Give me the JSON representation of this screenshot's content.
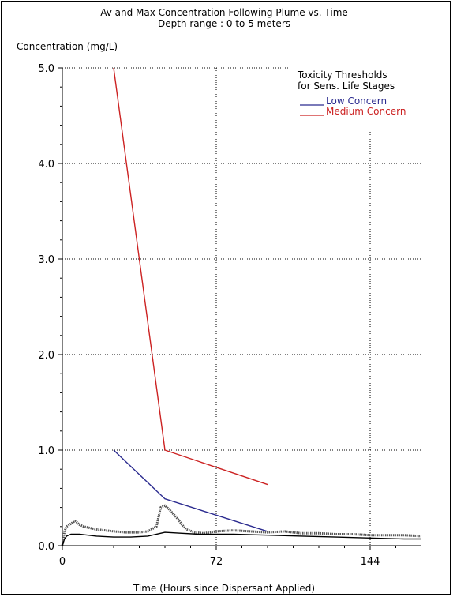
{
  "chart_data": {
    "type": "line",
    "title": "Av and Max Concentration Following Plume vs. Time",
    "subtitle": "Depth range :  0 to 5 meters",
    "ylabel": "Concentration (mg/L)",
    "xlabel": "Time (Hours since Dispersant Applied)",
    "xlim": [
      0,
      168
    ],
    "ylim": [
      0,
      5
    ],
    "xticks": [
      0,
      72,
      144
    ],
    "xtick_labels": [
      "0",
      "72",
      "144"
    ],
    "yticks": [
      0,
      1,
      2,
      3,
      4,
      5
    ],
    "ytick_labels": [
      "0.0",
      "1.0",
      "2.0",
      "3.0",
      "4.0",
      "5.0"
    ],
    "grid": true,
    "legend": {
      "title": "Toxicity Thresholds\nfor Sens. Life Stages",
      "placement": "top-right"
    },
    "series": [
      {
        "name": "Low Concern",
        "color": "#2b2b8f",
        "style": "solid",
        "x": [
          24,
          48,
          96
        ],
        "y": [
          1.0,
          0.49,
          0.15
        ]
      },
      {
        "name": "Medium Concern",
        "color": "#cc2222",
        "style": "solid",
        "x": [
          24,
          48,
          96
        ],
        "y": [
          5.0,
          1.0,
          0.64
        ]
      },
      {
        "color": "#555555",
        "style": "dotted-thick",
        "x": [
          0,
          1,
          2,
          4,
          6,
          8,
          10,
          12,
          16,
          20,
          24,
          30,
          36,
          40,
          44,
          46,
          48,
          50,
          52,
          54,
          56,
          58,
          62,
          66,
          72,
          80,
          88,
          96,
          104,
          112,
          120,
          128,
          136,
          144,
          152,
          160,
          168
        ],
        "y": [
          0.0,
          0.15,
          0.2,
          0.23,
          0.26,
          0.22,
          0.2,
          0.19,
          0.17,
          0.16,
          0.15,
          0.14,
          0.14,
          0.15,
          0.2,
          0.4,
          0.42,
          0.38,
          0.33,
          0.28,
          0.22,
          0.17,
          0.14,
          0.13,
          0.15,
          0.16,
          0.15,
          0.14,
          0.15,
          0.13,
          0.13,
          0.12,
          0.12,
          0.11,
          0.11,
          0.11,
          0.1
        ]
      },
      {
        "color": "#000000",
        "style": "solid",
        "x": [
          0,
          1,
          2,
          4,
          8,
          12,
          16,
          24,
          32,
          40,
          48,
          56,
          64,
          72,
          80,
          96,
          112,
          128,
          144,
          160,
          168
        ],
        "y": [
          0.0,
          0.07,
          0.1,
          0.12,
          0.12,
          0.11,
          0.1,
          0.09,
          0.09,
          0.1,
          0.14,
          0.13,
          0.12,
          0.12,
          0.12,
          0.11,
          0.1,
          0.09,
          0.08,
          0.07,
          0.07
        ]
      }
    ]
  }
}
